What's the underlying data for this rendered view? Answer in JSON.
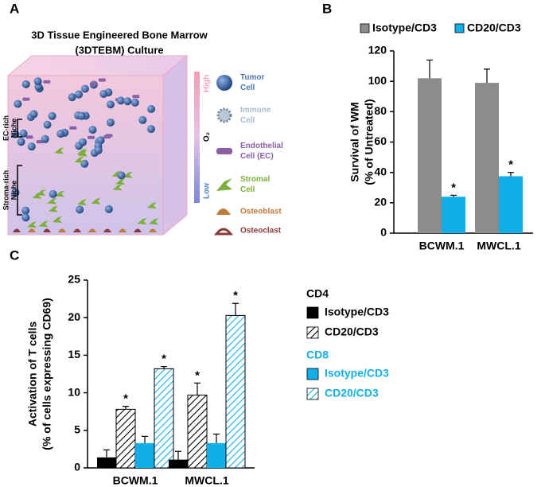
{
  "panel_labels": [
    "A",
    "B",
    "C"
  ],
  "diagram": {
    "title_lines": [
      "3D Tissue Engineered Bone Marrow",
      "(3DTEBM) Culture"
    ],
    "niches": [
      {
        "lines": [
          "EC-rich",
          "Niche"
        ]
      },
      {
        "lines": [
          "Stroma-rich",
          "Niche"
        ]
      }
    ],
    "oxygen": {
      "high": "High",
      "label": "O₂",
      "low": "Low"
    },
    "legend": [
      {
        "lines": [
          "Tumor",
          "Cell"
        ],
        "color": "#4a79b8"
      },
      {
        "lines": [
          "Immune",
          "Cell"
        ],
        "color": "#a7bccf"
      },
      {
        "lines": [
          "Endothelial",
          "Cell (EC)"
        ],
        "color": "#8a5fa8"
      },
      {
        "lines": [
          "Stromal",
          "Cell"
        ],
        "color": "#7ab03a"
      },
      {
        "lines": [
          "Osteoblast"
        ],
        "color": "#c07a3a"
      },
      {
        "lines": [
          "Osteoclast"
        ],
        "color": "#8b3a3a"
      }
    ]
  },
  "chart_data": [
    {
      "type": "bar",
      "ylabel_lines": [
        "Survival of WM",
        "(% of Untreated)"
      ],
      "categories": [
        "BCWM.1",
        "MWCL.1"
      ],
      "ylim": [
        0,
        120
      ],
      "yticks": [
        0,
        20,
        40,
        60,
        80,
        100,
        120
      ],
      "groups": [
        {
          "series": [
            {
              "name": "Isotype/CD3",
              "color": "#8c8c8c",
              "hatch": false,
              "values": [
                102,
                99
              ],
              "errors": [
                12,
                9
              ],
              "significance": [
                null,
                null
              ]
            },
            {
              "name": "CD20/CD3",
              "color": "#12aee8",
              "hatch": false,
              "values": [
                24,
                37.5
              ],
              "errors": [
                1,
                2.5
              ],
              "significance": [
                "*",
                "*"
              ]
            }
          ]
        }
      ]
    },
    {
      "type": "bar",
      "ylabel_lines": [
        "Activation of T cells",
        "(% of cells expressing CD69)"
      ],
      "categories": [
        "BCWM.1",
        "MWCL.1"
      ],
      "ylim": [
        0,
        25
      ],
      "yticks": [
        0,
        5,
        10,
        15,
        20,
        25
      ],
      "groups": [
        {
          "name": "CD4",
          "color": "#000000",
          "series": [
            {
              "name": "Isotype/CD3",
              "color": "#000000",
              "hatch": false,
              "values": [
                1.4,
                1.1
              ],
              "errors": [
                1,
                1.1
              ],
              "significance": [
                null,
                null
              ]
            },
            {
              "name": "CD20/CD3",
              "color": "#000000",
              "hatch": true,
              "values": [
                7.8,
                9.7
              ],
              "errors": [
                0.4,
                1.6
              ],
              "significance": [
                "*",
                "*"
              ]
            }
          ]
        },
        {
          "name": "CD8",
          "color": "#12aee8",
          "series": [
            {
              "name": "Isotype/CD3",
              "color": "#12aee8",
              "hatch": false,
              "values": [
                3.3,
                3.3
              ],
              "errors": [
                0.9,
                1.2
              ],
              "significance": [
                null,
                null
              ]
            },
            {
              "name": "CD20/CD3",
              "color": "#12aee8",
              "hatch": true,
              "values": [
                13.2,
                20.3
              ],
              "errors": [
                0.3,
                1.6
              ],
              "significance": [
                "*",
                "*"
              ]
            }
          ]
        }
      ]
    }
  ]
}
